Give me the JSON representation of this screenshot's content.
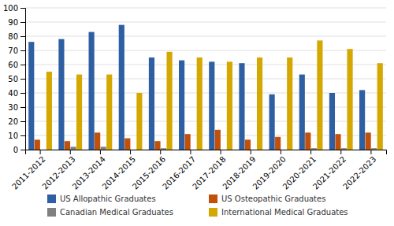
{
  "chart_data": {
    "type": "bar",
    "categories": [
      "2011-2012",
      "2012-2013",
      "2013-2014",
      "2014-2015",
      "2015-2016",
      "2016-2017",
      "2017-2018",
      "2018-2019",
      "2019-2020",
      "2020-2021",
      "2021-2022",
      "2022-2023"
    ],
    "series": [
      {
        "name": "US Allopathic Graduates",
        "color": "#2E5FA3",
        "values": [
          76,
          78,
          83,
          88,
          65,
          63,
          62,
          61,
          39,
          53,
          40,
          42
        ]
      },
      {
        "name": "US Osteopathic Graduates",
        "color": "#C0500A",
        "values": [
          7,
          6,
          12,
          8,
          6,
          11,
          14,
          7,
          9,
          12,
          11,
          12
        ]
      },
      {
        "name": "Canadian Medical Graduates",
        "color": "#808080",
        "values": [
          0,
          2,
          2,
          0,
          1,
          0,
          0,
          0,
          0,
          1,
          1,
          1
        ]
      },
      {
        "name": "International Medical Graduates",
        "color": "#D4A800",
        "values": [
          55,
          53,
          53,
          40,
          69,
          65,
          62,
          65,
          65,
          77,
          71,
          61
        ]
      }
    ],
    "ylim": [
      0,
      100
    ],
    "yticks": [
      0,
      10,
      20,
      30,
      40,
      50,
      60,
      70,
      80,
      90,
      100
    ],
    "grid": true,
    "legend": "bottom"
  }
}
